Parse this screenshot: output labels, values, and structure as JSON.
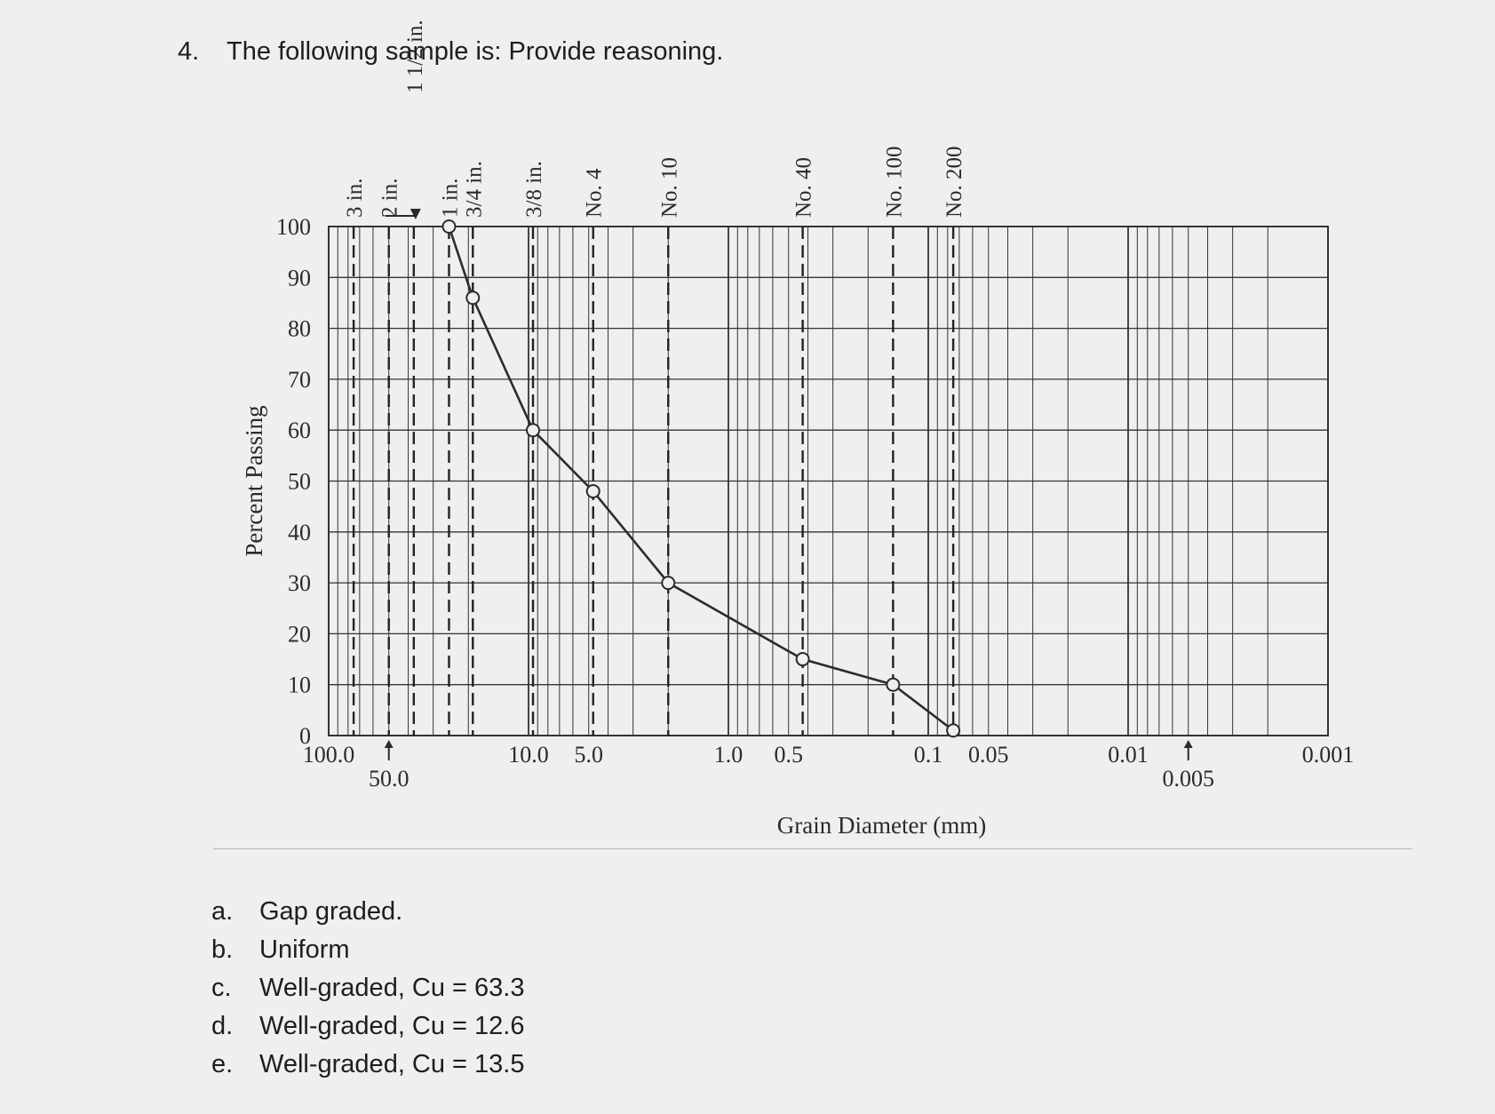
{
  "question": {
    "number": "4.",
    "text": "The following sample is: Provide reasoning."
  },
  "chart_data": {
    "type": "line",
    "title": "",
    "xlabel": "Grain Diameter (mm)",
    "ylabel": "Percent Passing",
    "x_scale": "log",
    "x_reversed": true,
    "xlim": [
      100,
      0.001
    ],
    "ylim": [
      0,
      100
    ],
    "y_ticks": [
      0,
      10,
      20,
      30,
      40,
      50,
      60,
      70,
      80,
      90,
      100
    ],
    "x_tick_labels": [
      {
        "value": 100,
        "label": "100.0"
      },
      {
        "value": 50,
        "label": "50.0",
        "arrow": true
      },
      {
        "value": 10,
        "label": "10.0"
      },
      {
        "value": 5,
        "label": "5.0"
      },
      {
        "value": 1,
        "label": "1.0"
      },
      {
        "value": 0.5,
        "label": "0.5"
      },
      {
        "value": 0.1,
        "label": "0.1"
      },
      {
        "value": 0.05,
        "label": "0.05"
      },
      {
        "value": 0.01,
        "label": "0.01"
      },
      {
        "value": 0.005,
        "label": "0.005",
        "arrow": true
      },
      {
        "value": 0.001,
        "label": "0.001"
      }
    ],
    "sieve_labels": [
      {
        "label": "3 in.",
        "value": 75
      },
      {
        "label": "2 in.",
        "value": 50
      },
      {
        "label": "1 1/2 in.",
        "value": 37.5,
        "arrow": true
      },
      {
        "label": "1 in.",
        "value": 25
      },
      {
        "label": "3/4 in.",
        "value": 19
      },
      {
        "label": "3/8 in.",
        "value": 9.5
      },
      {
        "label": "No. 4",
        "value": 4.75
      },
      {
        "label": "No. 10",
        "value": 2.0
      },
      {
        "label": "No. 40",
        "value": 0.425
      },
      {
        "label": "No. 100",
        "value": 0.15
      },
      {
        "label": "No. 200",
        "value": 0.075
      }
    ],
    "series": [
      {
        "x": [
          25,
          19,
          9.5,
          4.75,
          2.0,
          0.425,
          0.15,
          0.075
        ],
        "y": [
          100,
          86,
          60,
          48,
          30,
          15,
          10,
          1
        ]
      }
    ],
    "grid": true,
    "colors": {
      "line": "#2b2b30",
      "grid": "#333338",
      "marker_fill": "#eef0ee"
    }
  },
  "options": [
    {
      "letter": "a.",
      "text": "Gap graded."
    },
    {
      "letter": "b.",
      "text": "Uniform"
    },
    {
      "letter": "c.",
      "text": "Well-graded, Cu = 63.3"
    },
    {
      "letter": "d.",
      "text": "Well-graded, Cu = 12.6"
    },
    {
      "letter": "e.",
      "text": "Well-graded, Cu = 13.5"
    }
  ]
}
